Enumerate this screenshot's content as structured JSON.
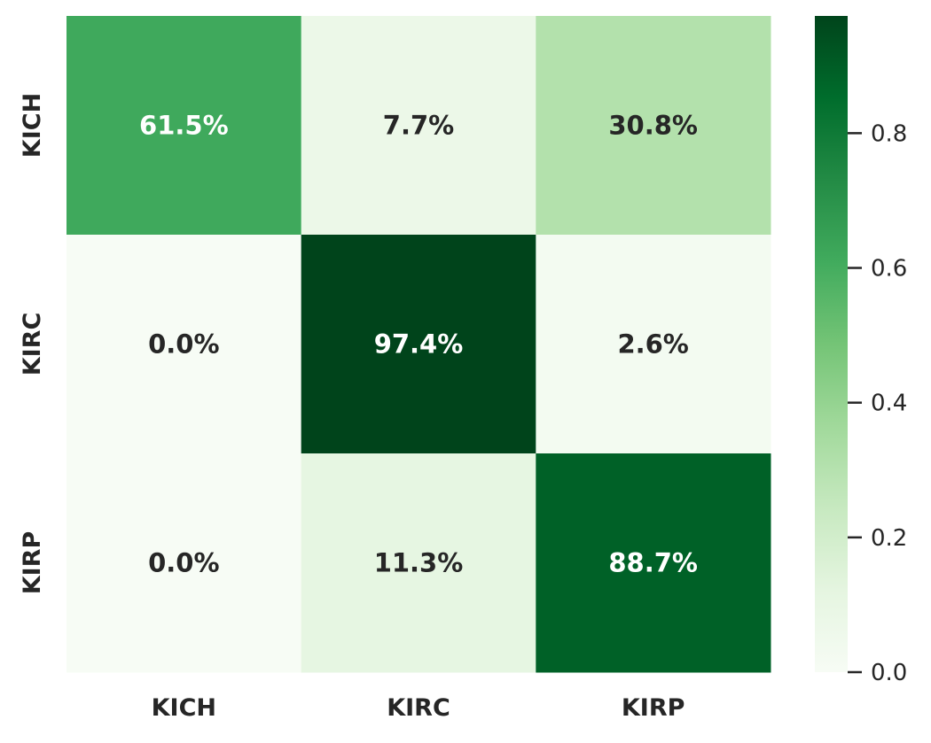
{
  "chart_data": {
    "type": "heatmap",
    "title": "",
    "xlabel": "",
    "ylabel": "",
    "x_categories": [
      "KICH",
      "KIRC",
      "KIRP"
    ],
    "y_categories": [
      "KICH",
      "KIRC",
      "KIRP"
    ],
    "values": [
      [
        0.615,
        0.077,
        0.308
      ],
      [
        0.0,
        0.974,
        0.026
      ],
      [
        0.0,
        0.113,
        0.887
      ]
    ],
    "cell_labels": [
      [
        "61.5%",
        "7.7%",
        "30.8%"
      ],
      [
        "0.0%",
        "97.4%",
        "2.6%"
      ],
      [
        "0.0%",
        "11.3%",
        "88.7%"
      ]
    ],
    "colormap": "Greens",
    "colorbar": {
      "ticks": [
        0.0,
        0.2,
        0.4,
        0.6,
        0.8
      ],
      "tick_labels": [
        "0.0",
        "0.2",
        "0.4",
        "0.6",
        "0.8"
      ],
      "vmin": 0.0,
      "vmax": 0.974
    },
    "grid": false,
    "legend": "colorbar-right"
  }
}
